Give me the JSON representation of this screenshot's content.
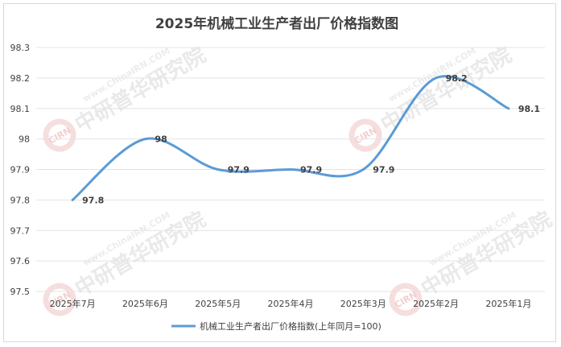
{
  "chart_data": {
    "type": "line",
    "title": "2025年机械工业生产者出厂价格指数图",
    "categories": [
      "2025年7月",
      "2025年6月",
      "2025年5月",
      "2025年4月",
      "2025年3月",
      "2025年2月",
      "2025年1月"
    ],
    "series": [
      {
        "name": "机械工业生产者出厂价格指数(上年同月=100)",
        "values": [
          97.8,
          98,
          97.9,
          97.9,
          97.9,
          98.2,
          98.1
        ],
        "color": "#5b9bd5"
      }
    ],
    "data_labels": [
      "97.8",
      "98",
      "97.9",
      "97.9",
      "97.9",
      "98.2",
      "98.1"
    ],
    "ylim": [
      97.5,
      98.3
    ],
    "yticks": [
      "97.5",
      "97.6",
      "97.7",
      "97.8",
      "97.9",
      "98",
      "98.1",
      "98.2",
      "98.3"
    ],
    "grid": true,
    "legend": "bottom",
    "smooth": true
  },
  "watermark": {
    "text": "中研普华研究院",
    "en": "www.ChinaIRN.COM",
    "seal": "CIRN"
  }
}
